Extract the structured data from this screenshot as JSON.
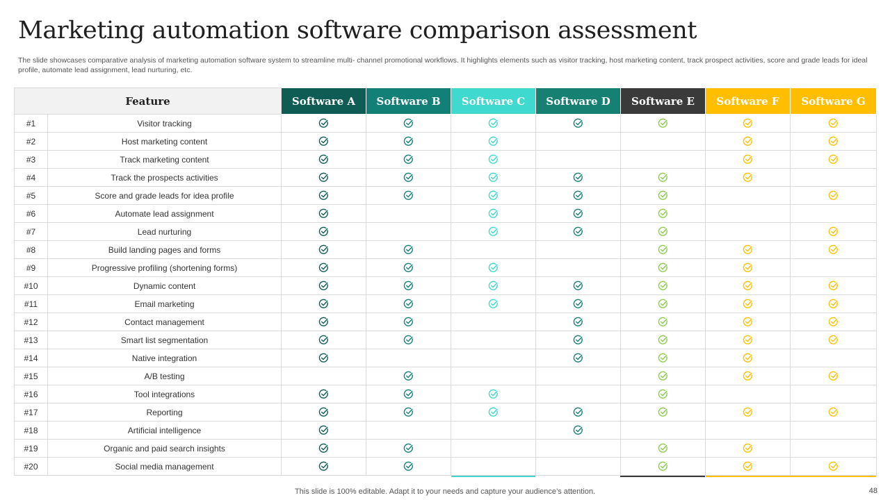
{
  "title": "Marketing automation software comparison assessment",
  "subtitle": "The slide showcases comparative analysis of marketing automation software system to streamline multi- channel promotional workflows. It highlights elements such as visitor tracking, host marketing content, track prospect activities, score and grade leads for ideal profile, automate lead assignment, lead nurturing, etc.",
  "table": {
    "feature_header": "Feature",
    "software": [
      {
        "name": "Software A",
        "color": "#0f5c55"
      },
      {
        "name": "Software B",
        "color": "#138077"
      },
      {
        "name": "Software C",
        "color": "#3fd9cf"
      },
      {
        "name": "Software D",
        "color": "#168073"
      },
      {
        "name": "Software E",
        "color": "#3a3a3a"
      },
      {
        "name": "Software F",
        "color": "#ffbf00"
      },
      {
        "name": "Software G",
        "color": "#ffbf00"
      }
    ],
    "check_colors": [
      "#0f5c55",
      "#138077",
      "#3fd9cf",
      "#168073",
      "#8ccc4a",
      "#ffbf00",
      "#ffbf00"
    ],
    "rows": [
      {
        "num": "#1",
        "feature": "Visitor tracking",
        "checks": [
          true,
          true,
          true,
          true,
          true,
          true,
          true
        ]
      },
      {
        "num": "#2",
        "feature": "Host marketing content",
        "checks": [
          true,
          true,
          true,
          false,
          false,
          true,
          true
        ]
      },
      {
        "num": "#3",
        "feature": "Track marketing content",
        "checks": [
          true,
          true,
          true,
          false,
          false,
          true,
          true
        ]
      },
      {
        "num": "#4",
        "feature": "Track the prospects activities",
        "checks": [
          true,
          true,
          true,
          true,
          true,
          true,
          false
        ]
      },
      {
        "num": "#5",
        "feature": "Score and grade leads for idea profile",
        "checks": [
          true,
          true,
          true,
          true,
          true,
          false,
          true
        ]
      },
      {
        "num": "#6",
        "feature": "Automate lead assignment",
        "checks": [
          true,
          false,
          true,
          true,
          true,
          false,
          false
        ]
      },
      {
        "num": "#7",
        "feature": "Lead nurturing",
        "checks": [
          true,
          false,
          true,
          true,
          true,
          false,
          true
        ]
      },
      {
        "num": "#8",
        "feature": "Build landing pages and forms",
        "checks": [
          true,
          true,
          false,
          false,
          true,
          true,
          true
        ]
      },
      {
        "num": "#9",
        "feature": "Progressive profiling (shortening forms)",
        "checks": [
          true,
          true,
          true,
          false,
          true,
          true,
          false
        ]
      },
      {
        "num": "#10",
        "feature": "Dynamic content",
        "checks": [
          true,
          true,
          true,
          true,
          true,
          true,
          true
        ]
      },
      {
        "num": "#11",
        "feature": "Email marketing",
        "checks": [
          true,
          true,
          true,
          true,
          true,
          true,
          true
        ]
      },
      {
        "num": "#12",
        "feature": "Contact management",
        "checks": [
          true,
          true,
          false,
          true,
          true,
          true,
          true
        ]
      },
      {
        "num": "#13",
        "feature": "Smart list segmentation",
        "checks": [
          true,
          true,
          false,
          true,
          true,
          true,
          true
        ]
      },
      {
        "num": "#14",
        "feature": "Native integration",
        "checks": [
          true,
          false,
          false,
          true,
          true,
          true,
          false
        ]
      },
      {
        "num": "#15",
        "feature": "A/B testing",
        "checks": [
          false,
          true,
          false,
          false,
          true,
          true,
          true
        ]
      },
      {
        "num": "#16",
        "feature": "Tool integrations",
        "checks": [
          true,
          true,
          true,
          false,
          true,
          false,
          false
        ]
      },
      {
        "num": "#17",
        "feature": "Reporting",
        "checks": [
          true,
          true,
          true,
          true,
          true,
          true,
          true
        ]
      },
      {
        "num": "#18",
        "feature": "Artificial intelligence",
        "checks": [
          true,
          false,
          false,
          true,
          false,
          false,
          false
        ]
      },
      {
        "num": "#19",
        "feature": "Organic and paid search insights",
        "checks": [
          true,
          true,
          false,
          false,
          true,
          true,
          false
        ]
      },
      {
        "num": "#20",
        "feature": "Social media management",
        "checks": [
          true,
          true,
          false,
          false,
          true,
          true,
          true
        ]
      }
    ]
  },
  "footer": "This slide is 100% editable. Adapt it to your needs and capture your audience’s attention.",
  "page_number": "48",
  "icons": {
    "check": "check-circle-icon"
  }
}
